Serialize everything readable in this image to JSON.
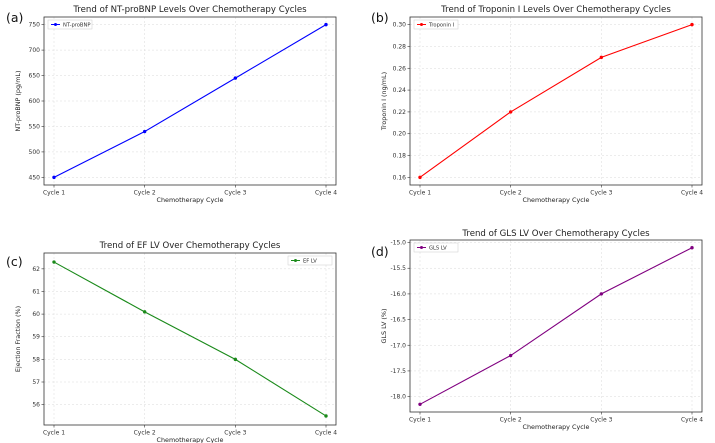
{
  "chart_data": [
    {
      "panel_label": "(a)",
      "type": "line",
      "title": "Trend of NT-proBNP Levels Over Chemotherapy Cycles",
      "xlabel": "Chemotherapy Cycle",
      "ylabel": "NT-proBNP (pg/mL)",
      "categories": [
        "Cycle 1",
        "Cycle 2",
        "Cycle 3",
        "Cycle 4"
      ],
      "ylim": [
        435,
        765
      ],
      "yticks": [
        450,
        500,
        550,
        600,
        650,
        700,
        750
      ],
      "ytick_labels": [
        "450",
        "500",
        "550",
        "600",
        "650",
        "700",
        "750"
      ],
      "grid": true,
      "legend_position": "top-left",
      "series": [
        {
          "name": "NT-proBNP",
          "values": [
            450,
            540,
            645,
            750
          ],
          "color": "#0000ff"
        }
      ]
    },
    {
      "panel_label": "(b)",
      "type": "line",
      "title": "Trend of Troponin I Levels Over Chemotherapy Cycles",
      "xlabel": "Chemotherapy Cycle",
      "ylabel": "Troponin I (ng/mL)",
      "categories": [
        "Cycle 1",
        "Cycle 2",
        "Cycle 3",
        "Cycle 4"
      ],
      "ylim": [
        0.153,
        0.307
      ],
      "yticks": [
        0.16,
        0.18,
        0.2,
        0.22,
        0.24,
        0.26,
        0.28,
        0.3
      ],
      "ytick_labels": [
        "0.16",
        "0.18",
        "0.20",
        "0.22",
        "0.24",
        "0.26",
        "0.28",
        "0.30"
      ],
      "grid": true,
      "legend_position": "top-left",
      "series": [
        {
          "name": "Troponin I",
          "values": [
            0.16,
            0.22,
            0.27,
            0.3
          ],
          "color": "#ff0000"
        }
      ]
    },
    {
      "panel_label": "(c)",
      "type": "line",
      "title": "Trend of EF LV Over Chemotherapy Cycles",
      "xlabel": "Chemotherapy Cycle",
      "ylabel": "Ejection Fraction (%)",
      "categories": [
        "Cycle 1",
        "Cycle 2",
        "Cycle 3",
        "Cycle 4"
      ],
      "ylim": [
        55.1,
        62.7
      ],
      "yticks": [
        56,
        57,
        58,
        59,
        60,
        61,
        62
      ],
      "ytick_labels": [
        "56",
        "57",
        "58",
        "59",
        "60",
        "61",
        "62"
      ],
      "grid": true,
      "legend_position": "top-right",
      "series": [
        {
          "name": "EF LV",
          "values": [
            62.3,
            60.1,
            58.0,
            55.5
          ],
          "color": "#1a8a1a"
        }
      ]
    },
    {
      "panel_label": "(d)",
      "type": "line",
      "title": "Trend of GLS LV Over Chemotherapy Cycles",
      "xlabel": "Chemotherapy Cycle",
      "ylabel": "GLS LV (%)",
      "categories": [
        "Cycle 1",
        "Cycle 2",
        "Cycle 3",
        "Cycle 4"
      ],
      "ylim": [
        -18.3,
        -14.95
      ],
      "yticks": [
        -18.0,
        -17.5,
        -17.0,
        -16.5,
        -16.0,
        -15.5,
        -15.0
      ],
      "ytick_labels": [
        "-18.0",
        "-17.5",
        "-17.0",
        "-16.5",
        "-16.0",
        "-15.5",
        "-15.0"
      ],
      "grid": true,
      "legend_position": "top-left",
      "series": [
        {
          "name": "GLS LV",
          "values": [
            -18.15,
            -17.2,
            -16.0,
            -15.1
          ],
          "color": "#800080"
        }
      ]
    }
  ]
}
